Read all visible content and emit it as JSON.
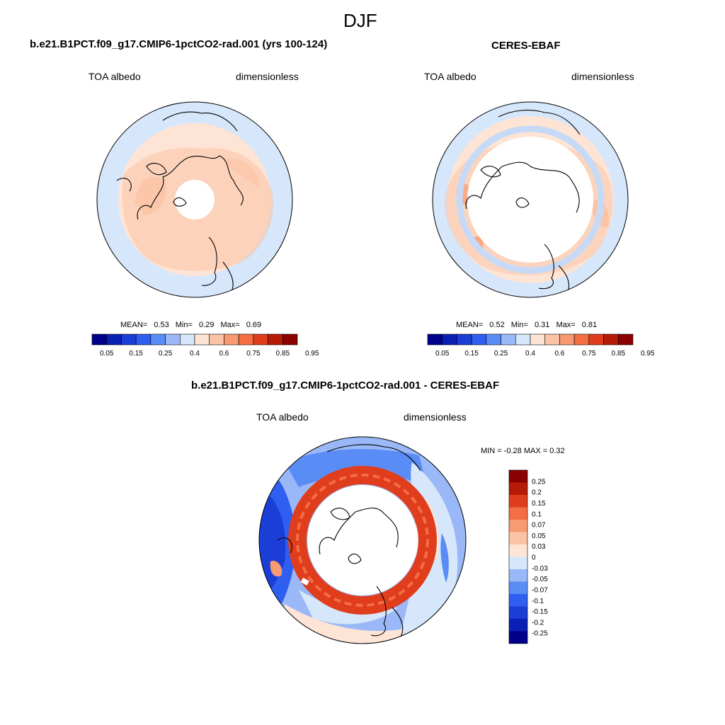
{
  "figure": {
    "title": "DJF"
  },
  "panels": {
    "model": {
      "title": "b.e21.B1PCT.f09_g17.CMIP6-1pctCO2-rad.001 (yrs 100-124)",
      "left_label": "TOA albedo",
      "right_label": "dimensionless",
      "mean_label": "MEAN=",
      "mean": "0.53",
      "min_label": "Min=",
      "min": "0.29",
      "max_label": "Max=",
      "max": "0.69"
    },
    "obs": {
      "title": "CERES-EBAF",
      "left_label": "TOA albedo",
      "right_label": "dimensionless",
      "mean_label": "MEAN=",
      "mean": "0.52",
      "min_label": "Min=",
      "min": "0.31",
      "max_label": "Max=",
      "max": "0.81"
    },
    "diff": {
      "title": "b.e21.B1PCT.f09_g17.CMIP6-1pctCO2-rad.001 - CERES-EBAF",
      "left_label": "TOA albedo",
      "right_label": "dimensionless",
      "minmax_text": "MIN =  -0.28 MAX =   0.32"
    }
  },
  "colorbar_abs": {
    "colors": [
      "#00008b",
      "#0a1fb4",
      "#1a3ed6",
      "#2e5ff0",
      "#5a8cf5",
      "#9ab8f7",
      "#d6e7fb",
      "#fde4d5",
      "#fbc3a5",
      "#f89a72",
      "#f46d43",
      "#e03d1c",
      "#b51c08",
      "#8b0000"
    ],
    "labels": [
      "0.05",
      "0.15",
      "0.25",
      "0.4",
      "0.6",
      "0.75",
      "0.85",
      "0.95"
    ]
  },
  "colorbar_diff": {
    "colors": [
      "#00008b",
      "#0a1fb4",
      "#1a3ed6",
      "#2e5ff0",
      "#5a8cf5",
      "#9ab8f7",
      "#d6e7fb",
      "#fde4d5",
      "#fbc3a5",
      "#f89a72",
      "#f46d43",
      "#e03d1c",
      "#b51c08",
      "#8b0000"
    ],
    "labels": [
      "-0.25",
      "-0.2",
      "-0.15",
      "-0.1",
      "-0.07",
      "-0.05",
      "-0.03",
      "0",
      "0.03",
      "0.05",
      "0.07",
      "0.1",
      "0.15",
      "0.2",
      "0.25"
    ]
  }
}
